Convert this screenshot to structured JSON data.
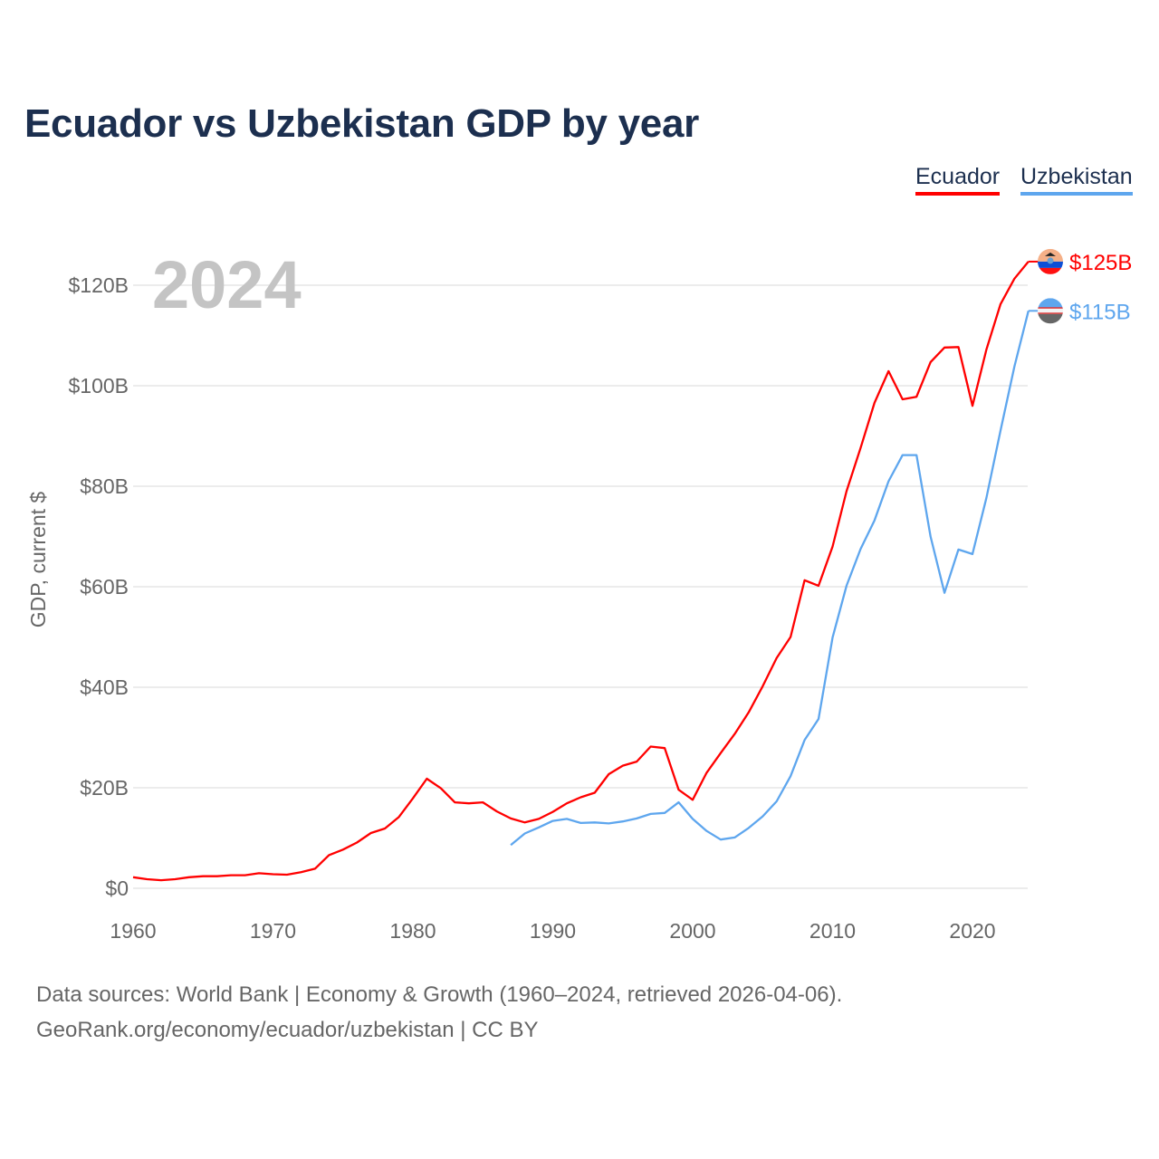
{
  "title": "Ecuador vs Uzbekistan GDP by year",
  "legend": [
    {
      "label": "Ecuador",
      "color": "#ff0000"
    },
    {
      "label": "Uzbekistan",
      "color": "#5ea6ee"
    }
  ],
  "year_label": "2024",
  "footer": {
    "line1": "Data sources: World Bank | Economy & Growth (1960–2024, retrieved 2026-04-06).",
    "line2": "GeoRank.org/economy/ecuador/uzbekistan | CC BY"
  },
  "chart_data": {
    "type": "line",
    "title": "Ecuador vs Uzbekistan GDP by year",
    "xlabel": "",
    "ylabel": "GDP, current $",
    "xlim": [
      1960,
      2024
    ],
    "ylim": [
      0,
      125
    ],
    "grid": true,
    "legend_position": "top-right",
    "x_ticks": [
      1960,
      1970,
      1980,
      1990,
      2000,
      2010,
      2020
    ],
    "x_tick_labels": [
      "1960",
      "1970",
      "1980",
      "1990",
      "2000",
      "2010",
      "2020"
    ],
    "y_ticks": [
      0,
      20,
      40,
      60,
      80,
      100,
      120
    ],
    "y_tick_labels": [
      "$0",
      "$20B",
      "$40B",
      "$60B",
      "$80B",
      "$100B",
      "$120B"
    ],
    "series": [
      {
        "name": "Ecuador",
        "color": "#ff0000",
        "end_label": "$125B",
        "flag": "ecuador-flag",
        "start_year": 1960,
        "values": [
          2.2,
          1.8,
          1.6,
          1.8,
          2.2,
          2.4,
          2.4,
          2.6,
          2.6,
          3.0,
          2.8,
          2.7,
          3.2,
          3.9,
          6.6,
          7.7,
          9.1,
          11.0,
          11.9,
          14.2,
          17.9,
          21.8,
          19.9,
          17.1,
          16.9,
          17.1,
          15.3,
          13.9,
          13.1,
          13.8,
          15.2,
          16.9,
          18.1,
          19.0,
          22.7,
          24.4,
          25.2,
          28.2,
          27.9,
          19.6,
          17.6,
          23.0,
          26.9,
          30.7,
          35.0,
          40.2,
          45.8,
          50.0,
          61.3,
          60.2,
          68.0,
          79.0,
          87.6,
          96.6,
          102.9,
          97.3,
          97.8,
          104.7,
          107.6,
          107.7,
          96.0,
          107.2,
          116.2,
          121.3,
          124.7
        ]
      },
      {
        "name": "Uzbekistan",
        "color": "#5ea6ee",
        "end_label": "$115B",
        "flag": "uzbekistan-flag",
        "start_year": 1987,
        "values": [
          8.6,
          10.9,
          12.1,
          13.4,
          13.8,
          13.0,
          13.1,
          12.9,
          13.3,
          13.9,
          14.8,
          15.0,
          17.1,
          13.8,
          11.4,
          9.7,
          10.1,
          12.0,
          14.3,
          17.3,
          22.3,
          29.5,
          33.7,
          49.9,
          60.2,
          67.5,
          73.2,
          81.0,
          86.2,
          86.2,
          70.0,
          58.8,
          67.4,
          66.5,
          77.7,
          91.0,
          103.8,
          114.9
        ]
      }
    ]
  }
}
